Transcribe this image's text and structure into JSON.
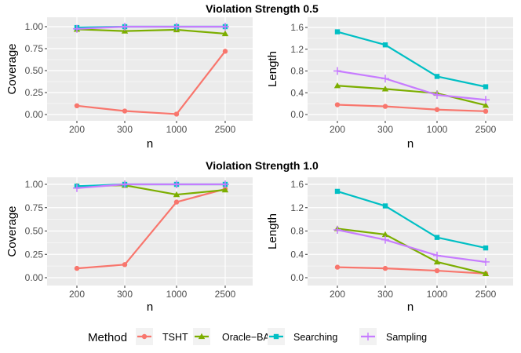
{
  "legend": {
    "title": "Method",
    "entries": [
      {
        "name": "TSHT",
        "color": "#F8766D",
        "shape": "circle"
      },
      {
        "name": "Oracle−BA",
        "color": "#7CAE00",
        "shape": "triangle"
      },
      {
        "name": "Searching",
        "color": "#00BFC4",
        "shape": "square"
      },
      {
        "name": "Sampling",
        "color": "#C77CFF",
        "shape": "plus"
      }
    ]
  },
  "chart_data": [
    {
      "type": "line",
      "title": "Violation Strength 0.5",
      "xlabel": "n",
      "ylabel": "Coverage",
      "categories": [
        "200",
        "300",
        "1000",
        "2500"
      ],
      "ylim": [
        0,
        1
      ],
      "yticks": [
        "0.00",
        "0.25",
        "0.50",
        "0.75",
        "1.00"
      ],
      "series": [
        {
          "name": "TSHT",
          "values": [
            0.1,
            0.04,
            0.005,
            0.72
          ]
        },
        {
          "name": "Oracle−BA",
          "values": [
            0.97,
            0.95,
            0.965,
            0.92
          ]
        },
        {
          "name": "Searching",
          "values": [
            0.99,
            1.0,
            1.0,
            1.0
          ]
        },
        {
          "name": "Sampling",
          "values": [
            0.975,
            1.0,
            1.0,
            1.0
          ]
        }
      ]
    },
    {
      "type": "line",
      "title": "",
      "xlabel": "n",
      "ylabel": "Length",
      "categories": [
        "200",
        "300",
        "1000",
        "2500"
      ],
      "ylim": [
        0,
        1.6
      ],
      "yticks": [
        "0.0",
        "0.4",
        "0.8",
        "1.2",
        "1.6"
      ],
      "series": [
        {
          "name": "TSHT",
          "values": [
            0.18,
            0.15,
            0.09,
            0.06
          ]
        },
        {
          "name": "Oracle−BA",
          "values": [
            0.53,
            0.47,
            0.39,
            0.17
          ]
        },
        {
          "name": "Searching",
          "values": [
            1.52,
            1.28,
            0.7,
            0.51
          ]
        },
        {
          "name": "Sampling",
          "values": [
            0.8,
            0.66,
            0.36,
            0.27
          ]
        }
      ]
    },
    {
      "type": "line",
      "title": "Violation Strength 1.0",
      "xlabel": "n",
      "ylabel": "Coverage",
      "categories": [
        "200",
        "300",
        "1000",
        "2500"
      ],
      "ylim": [
        0,
        1
      ],
      "yticks": [
        "0.00",
        "0.25",
        "0.50",
        "0.75",
        "1.00"
      ],
      "series": [
        {
          "name": "TSHT",
          "values": [
            0.1,
            0.14,
            0.81,
            0.95
          ]
        },
        {
          "name": "Oracle−BA",
          "values": [
            0.98,
            0.99,
            0.89,
            0.94
          ]
        },
        {
          "name": "Searching",
          "values": [
            0.98,
            1.0,
            1.0,
            1.0
          ]
        },
        {
          "name": "Sampling",
          "values": [
            0.96,
            1.0,
            1.0,
            1.0
          ]
        }
      ]
    },
    {
      "type": "line",
      "title": "",
      "xlabel": "n",
      "ylabel": "Length",
      "categories": [
        "200",
        "300",
        "1000",
        "2500"
      ],
      "ylim": [
        0,
        1.6
      ],
      "yticks": [
        "0.0",
        "0.4",
        "0.8",
        "1.2",
        "1.6"
      ],
      "series": [
        {
          "name": "TSHT",
          "values": [
            0.18,
            0.16,
            0.12,
            0.07
          ]
        },
        {
          "name": "Oracle−BA",
          "values": [
            0.84,
            0.74,
            0.27,
            0.07
          ]
        },
        {
          "name": "Searching",
          "values": [
            1.48,
            1.23,
            0.69,
            0.51
          ]
        },
        {
          "name": "Sampling",
          "values": [
            0.82,
            0.65,
            0.38,
            0.27
          ]
        }
      ]
    }
  ]
}
